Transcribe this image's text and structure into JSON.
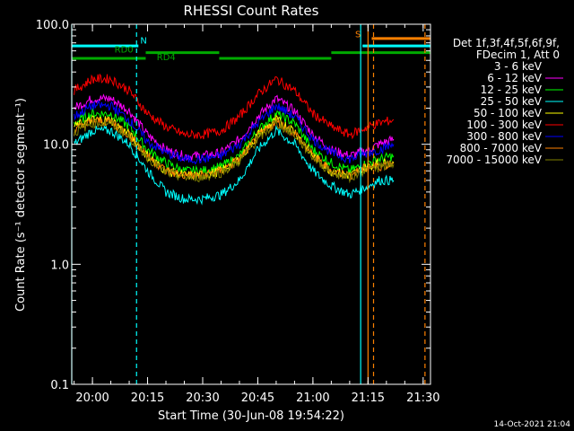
{
  "chart_data": {
    "type": "line",
    "title": "RHESSI Count Rates",
    "xlabel": "Start Time (30-Jun-08 19:54:22)",
    "ylabel": "Count Rate (s⁻¹ detector segment⁻¹)",
    "y_scale": "log",
    "ylim": [
      0.1,
      100.0
    ],
    "xlim": [
      "19:54:22",
      "21:32:00"
    ],
    "x_ticks": [
      "20:00",
      "20:15",
      "20:30",
      "20:45",
      "21:00",
      "21:15",
      "21:30"
    ],
    "y_ticks": [
      "0.1",
      "1.0",
      "10.0",
      "100.0"
    ],
    "grid": false,
    "legend_position": "right",
    "legend_header": [
      "Det 1f,3f,4f,5f,6f,9f,",
      "FDecim 1, Att 0"
    ],
    "series": [
      {
        "name": "3 - 6 keV",
        "color": "#000000",
        "x": [
          "19:55",
          "20:00",
          "20:05",
          "20:10",
          "20:15",
          "20:20",
          "20:25",
          "20:30",
          "20:35",
          "20:40",
          "20:45",
          "20:50",
          "20:55",
          "21:00",
          "21:05",
          "21:10",
          "21:15",
          "21:18",
          "21:22"
        ],
        "values": [
          13,
          17,
          17,
          13,
          8,
          6,
          5,
          5.2,
          5.5,
          7,
          11,
          16,
          13,
          8,
          6,
          5,
          6,
          7,
          7
        ]
      },
      {
        "name": "6 - 12 keV",
        "color": "#ff00ff",
        "x": [
          "19:55",
          "20:00",
          "20:05",
          "20:10",
          "20:15",
          "20:20",
          "20:25",
          "20:30",
          "20:35",
          "20:40",
          "20:45",
          "20:50",
          "20:55",
          "21:00",
          "21:05",
          "21:10",
          "21:15",
          "21:18",
          "21:22"
        ],
        "values": [
          20,
          24,
          24,
          19,
          12,
          9,
          8,
          8,
          8.5,
          11,
          17,
          24,
          19,
          12,
          9,
          8,
          9,
          10,
          11
        ]
      },
      {
        "name": "12 - 25 keV",
        "color": "#00ff00",
        "x": [
          "19:55",
          "20:00",
          "20:05",
          "20:10",
          "20:15",
          "20:20",
          "20:25",
          "20:30",
          "20:35",
          "20:40",
          "20:45",
          "20:50",
          "20:55",
          "21:00",
          "21:05",
          "21:10",
          "21:15",
          "21:18",
          "21:22"
        ],
        "values": [
          15,
          18,
          18,
          14,
          9,
          7,
          6,
          6,
          6.5,
          8,
          13,
          18,
          15,
          9,
          7,
          6,
          7,
          7.5,
          8
        ]
      },
      {
        "name": "25 - 50 keV",
        "color": "#00ffff",
        "x": [
          "19:55",
          "20:00",
          "20:05",
          "20:10",
          "20:15",
          "20:20",
          "20:25",
          "20:30",
          "20:35",
          "20:40",
          "20:45",
          "20:50",
          "20:55",
          "21:00",
          "21:05",
          "21:10",
          "21:15",
          "21:18",
          "21:22"
        ],
        "values": [
          10,
          13,
          13,
          10,
          6,
          4,
          3.5,
          3.5,
          3.8,
          5,
          9,
          13,
          10,
          6,
          4.5,
          3.8,
          4.5,
          5,
          5
        ]
      },
      {
        "name": "50 - 100 keV",
        "color": "#ffff00",
        "x": [
          "19:55",
          "20:00",
          "20:05",
          "20:10",
          "20:15",
          "20:20",
          "20:25",
          "20:30",
          "20:35",
          "20:40",
          "20:45",
          "20:50",
          "20:55",
          "21:00",
          "21:05",
          "21:10",
          "21:15",
          "21:18",
          "21:22"
        ],
        "values": [
          14,
          16,
          16,
          12,
          8,
          6,
          5.5,
          5.5,
          6,
          7.5,
          12,
          16,
          13,
          8,
          6,
          5.5,
          6.5,
          7,
          7
        ]
      },
      {
        "name": "100 - 300 keV",
        "color": "#ff0000",
        "x": [
          "19:55",
          "20:00",
          "20:05",
          "20:10",
          "20:15",
          "20:20",
          "20:25",
          "20:30",
          "20:35",
          "20:40",
          "20:45",
          "20:50",
          "20:55",
          "21:00",
          "21:05",
          "21:10",
          "21:15",
          "21:18",
          "21:22"
        ],
        "values": [
          28,
          35,
          35,
          28,
          18,
          14,
          12,
          12,
          13,
          17,
          26,
          35,
          28,
          18,
          14,
          12,
          14,
          15,
          16
        ]
      },
      {
        "name": "300 - 800 keV",
        "color": "#0000ff",
        "x": [
          "19:55",
          "20:00",
          "20:05",
          "20:10",
          "20:15",
          "20:20",
          "20:25",
          "20:30",
          "20:35",
          "20:40",
          "20:45",
          "20:50",
          "20:55",
          "21:00",
          "21:05",
          "21:10",
          "21:15",
          "21:18",
          "21:22"
        ],
        "values": [
          17,
          21,
          21,
          16,
          10.5,
          8.5,
          7.5,
          7.5,
          8,
          10,
          15,
          21,
          17,
          11,
          8.5,
          7.5,
          8.5,
          9,
          10
        ]
      },
      {
        "name": "800 - 7000 keV",
        "color": "#ff8000",
        "x": [
          "19:55",
          "20:00",
          "20:05",
          "20:10",
          "20:15",
          "20:20",
          "20:25",
          "20:30",
          "20:35",
          "20:40",
          "20:45",
          "20:50",
          "20:55",
          "21:00",
          "21:05",
          "21:10",
          "21:15",
          "21:18",
          "21:22"
        ],
        "values": [
          13,
          15.5,
          15.5,
          12,
          8,
          6,
          5.5,
          5.5,
          6,
          7.5,
          11.5,
          15.5,
          12.5,
          8,
          6,
          5.5,
          6.5,
          6.5,
          7
        ]
      },
      {
        "name": "7000 - 15000 keV",
        "color": "#808000",
        "x": [
          "19:55",
          "20:00",
          "20:05",
          "20:10",
          "20:15",
          "20:20",
          "20:25",
          "20:30",
          "20:35",
          "20:40",
          "20:45",
          "20:50",
          "20:55",
          "21:00",
          "21:05",
          "21:10",
          "21:15",
          "21:18",
          "21:22"
        ],
        "values": [
          12.5,
          15,
          15,
          11.5,
          7.8,
          5.8,
          5.3,
          5.3,
          5.8,
          7.2,
          11,
          15,
          12,
          7.8,
          5.8,
          5.3,
          6.2,
          6.4,
          6.8
        ]
      }
    ],
    "annotations": {
      "labels": [
        {
          "text": "RD0",
          "color": "#00aa00"
        },
        {
          "text": "RD4",
          "color": "#00aa00"
        },
        {
          "text": "N",
          "color": "#00ffff"
        },
        {
          "text": "S",
          "color": "#ff8000"
        }
      ],
      "bars": [
        {
          "color": "#00ffff",
          "start": "19:54:22",
          "end": "20:12:30",
          "level": 66
        },
        {
          "color": "#00ffff",
          "start": "21:13:30",
          "end": "21:32:00",
          "level": 66
        },
        {
          "color": "#ff8000",
          "start": "21:16:00",
          "end": "21:32:00",
          "level": 76
        },
        {
          "color": "#00aa00",
          "start": "19:54:22",
          "end": "20:14:30",
          "level": 52
        },
        {
          "color": "#00aa00",
          "start": "20:14:30",
          "end": "20:34:30",
          "level": 58
        },
        {
          "color": "#00aa00",
          "start": "20:34:30",
          "end": "21:05:00",
          "level": 52
        },
        {
          "color": "#00aa00",
          "start": "21:05:00",
          "end": "21:32:00",
          "level": 58
        }
      ],
      "vlines": [
        {
          "time": "19:54:22",
          "color": "#00ffff",
          "style": "solid"
        },
        {
          "time": "20:12:00",
          "color": "#00ffff",
          "style": "dashed"
        },
        {
          "time": "21:13:00",
          "color": "#00ffff",
          "style": "solid"
        },
        {
          "time": "21:15:00",
          "color": "#ff8000",
          "style": "solid"
        },
        {
          "time": "21:16:30",
          "color": "#ff8000",
          "style": "dashed"
        },
        {
          "time": "21:30:30",
          "color": "#ff8000",
          "style": "dashed"
        }
      ]
    }
  },
  "footer": {
    "date": "14-Oct-2021 21:04"
  }
}
